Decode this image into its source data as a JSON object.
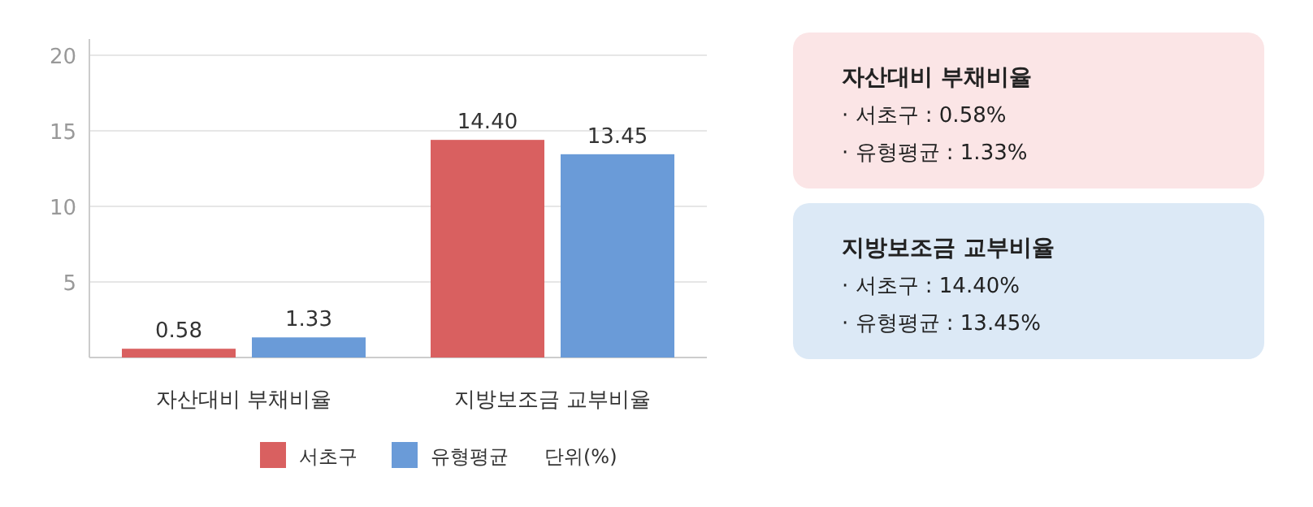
{
  "chart_data": {
    "type": "bar",
    "categories": [
      "자산대비 부채비율",
      "지방보조금 교부비율"
    ],
    "series": [
      {
        "name": "서초구",
        "color": "#d96060",
        "values": [
          0.58,
          14.4
        ],
        "value_labels": [
          "0.58",
          "14.40"
        ]
      },
      {
        "name": "유형평균",
        "color": "#6a9bd8",
        "values": [
          1.33,
          13.45
        ],
        "value_labels": [
          "1.33",
          "13.45"
        ]
      }
    ],
    "ylim": [
      0,
      20
    ],
    "yticks": [
      5,
      10,
      15,
      20
    ],
    "grid": "y",
    "legend": "bottom",
    "annotations": [
      "단위(%)",
      "자산대비 부채비율",
      "· 서초구 : 0.58%",
      "· 유형평균 : 1.33%",
      "지방보조금 교부비율",
      "· 서초구 : 14.40%",
      "· 유형평균 : 13.45%"
    ]
  }
}
